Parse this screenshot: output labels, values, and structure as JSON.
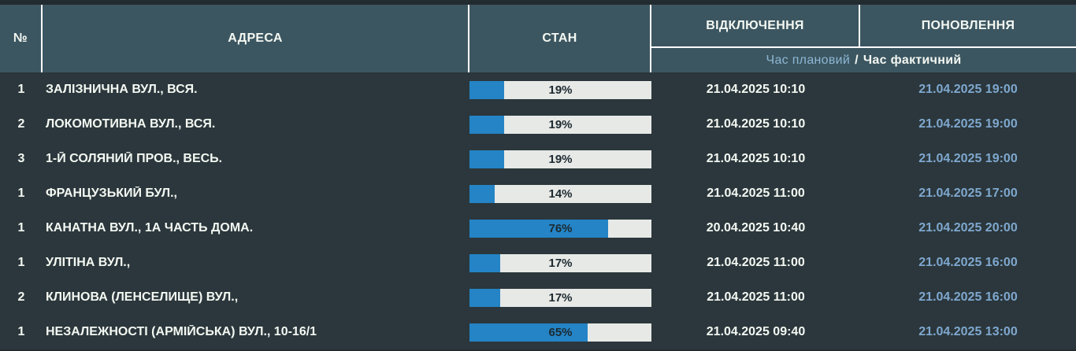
{
  "colors": {
    "frame_bg": "#222b30",
    "header_bg": "#3c5661",
    "body_bg": "#2b373c",
    "grid_line": "#ffffff",
    "text": "#f4f8f2",
    "planned_blue": "#8db7d3",
    "restore_blue": "#7fa8cf",
    "bar_track": "#e7e9e6",
    "bar_fill": "#2484c6",
    "bar_label": "#1d2a31"
  },
  "table": {
    "columns": {
      "num": "№",
      "address": "АДРЕСА",
      "status": "СТАН",
      "off": "ВІДКЛЮЧЕННЯ",
      "on": "ПОНОВЛЕННЯ"
    },
    "subheader": {
      "planned": "Час плановий",
      "separator": "/",
      "actual": "Час фактичний"
    },
    "rows": [
      {
        "num": "1",
        "address": "ЗАЛІЗНИЧНА ВУЛ., ВСЯ.",
        "percent": 19,
        "percent_label": "19%",
        "off": "21.04.2025 10:10",
        "on": "21.04.2025 19:00"
      },
      {
        "num": "2",
        "address": "ЛОКОМОТИВНА ВУЛ., ВСЯ.",
        "percent": 19,
        "percent_label": "19%",
        "off": "21.04.2025 10:10",
        "on": "21.04.2025 19:00"
      },
      {
        "num": "3",
        "address": "1-Й СОЛЯНИЙ ПРОВ., ВЕСЬ.",
        "percent": 19,
        "percent_label": "19%",
        "off": "21.04.2025 10:10",
        "on": "21.04.2025 19:00"
      },
      {
        "num": "1",
        "address": "ФРАНЦУЗЬКИЙ БУЛ.,",
        "percent": 14,
        "percent_label": "14%",
        "off": "21.04.2025 11:00",
        "on": "21.04.2025 17:00"
      },
      {
        "num": "1",
        "address": "КАНАТНА ВУЛ., 1А ЧАСТЬ ДОМА.",
        "percent": 76,
        "percent_label": "76%",
        "off": "20.04.2025 10:40",
        "on": "21.04.2025 20:00"
      },
      {
        "num": "1",
        "address": "УЛІТІНА ВУЛ.,",
        "percent": 17,
        "percent_label": "17%",
        "off": "21.04.2025 11:00",
        "on": "21.04.2025 16:00"
      },
      {
        "num": "2",
        "address": "КЛИНОВА (ЛЕНСЕЛИЩЕ) ВУЛ.,",
        "percent": 17,
        "percent_label": "17%",
        "off": "21.04.2025 11:00",
        "on": "21.04.2025 16:00"
      },
      {
        "num": "1",
        "address": "НЕЗАЛЕЖНОСТІ (АРМІЙСЬКА) ВУЛ., 10-16/1",
        "percent": 65,
        "percent_label": "65%",
        "off": "21.04.2025 09:40",
        "on": "21.04.2025 13:00"
      }
    ]
  }
}
